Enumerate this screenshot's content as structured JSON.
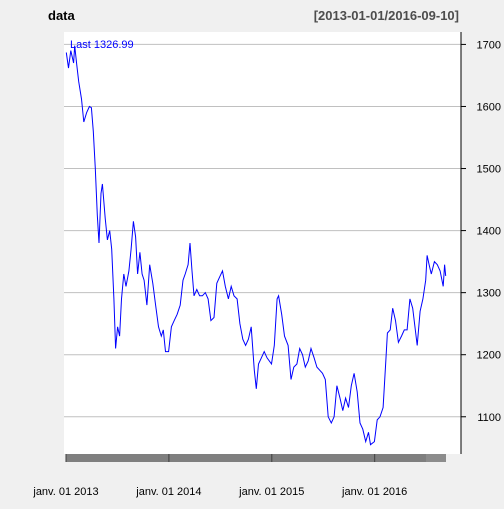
{
  "chart_data": {
    "type": "line",
    "title": "data",
    "date_range_label": "[2013-01-01/2016-09-10]",
    "last_label": "Last 1326.99",
    "xlabel": "",
    "ylabel": "",
    "xlim": [
      "2013-01-01",
      "2016-09-10"
    ],
    "ylim": [
      1040,
      1720
    ],
    "y_axis_side": "right",
    "grid": true,
    "y_ticks": [
      1100,
      1200,
      1300,
      1400,
      1500,
      1600,
      1700
    ],
    "x_tick_labels": [
      {
        "date": "2013-01-01",
        "label": "janv. 01 2013"
      },
      {
        "date": "2014-01-01",
        "label": "janv. 01 2014"
      },
      {
        "date": "2015-01-01",
        "label": "janv. 01 2015"
      },
      {
        "date": "2016-01-01",
        "label": "janv. 01 2016"
      }
    ],
    "colors": {
      "line": "#0000ff",
      "title": "#000000",
      "last_label": "#0000ff",
      "grid": "#c0c0c0",
      "bottom_bar": "#7f7f7f",
      "panel_bg": "#ffffff",
      "page_bg": "#f0f0f0"
    },
    "series": [
      {
        "points": [
          [
            "2013-01-02",
            1687
          ],
          [
            "2013-01-10",
            1662
          ],
          [
            "2013-01-18",
            1690
          ],
          [
            "2013-01-28",
            1670
          ],
          [
            "2013-02-01",
            1698
          ],
          [
            "2013-02-08",
            1668
          ],
          [
            "2013-02-15",
            1640
          ],
          [
            "2013-02-25",
            1612
          ],
          [
            "2013-03-05",
            1575
          ],
          [
            "2013-03-15",
            1590
          ],
          [
            "2013-03-25",
            1600
          ],
          [
            "2013-04-01",
            1598
          ],
          [
            "2013-04-08",
            1560
          ],
          [
            "2013-04-15",
            1500
          ],
          [
            "2013-04-22",
            1425
          ],
          [
            "2013-04-28",
            1380
          ],
          [
            "2013-05-05",
            1460
          ],
          [
            "2013-05-10",
            1475
          ],
          [
            "2013-05-20",
            1420
          ],
          [
            "2013-05-28",
            1385
          ],
          [
            "2013-06-05",
            1400
          ],
          [
            "2013-06-12",
            1370
          ],
          [
            "2013-06-20",
            1290
          ],
          [
            "2013-06-26",
            1210
          ],
          [
            "2013-07-03",
            1245
          ],
          [
            "2013-07-10",
            1230
          ],
          [
            "2013-07-17",
            1290
          ],
          [
            "2013-07-25",
            1330
          ],
          [
            "2013-08-02",
            1310
          ],
          [
            "2013-08-12",
            1335
          ],
          [
            "2013-08-20",
            1370
          ],
          [
            "2013-08-28",
            1415
          ],
          [
            "2013-09-05",
            1390
          ],
          [
            "2013-09-12",
            1330
          ],
          [
            "2013-09-20",
            1365
          ],
          [
            "2013-09-28",
            1330
          ],
          [
            "2013-10-05",
            1320
          ],
          [
            "2013-10-15",
            1280
          ],
          [
            "2013-10-25",
            1345
          ],
          [
            "2013-11-05",
            1315
          ],
          [
            "2013-11-15",
            1280
          ],
          [
            "2013-11-25",
            1245
          ],
          [
            "2013-12-05",
            1230
          ],
          [
            "2013-12-12",
            1240
          ],
          [
            "2013-12-20",
            1205
          ],
          [
            "2013-12-31",
            1205
          ],
          [
            "2014-01-10",
            1245
          ],
          [
            "2014-01-20",
            1255
          ],
          [
            "2014-01-30",
            1265
          ],
          [
            "2014-02-10",
            1280
          ],
          [
            "2014-02-20",
            1320
          ],
          [
            "2014-02-28",
            1330
          ],
          [
            "2014-03-10",
            1345
          ],
          [
            "2014-03-17",
            1380
          ],
          [
            "2014-03-24",
            1335
          ],
          [
            "2014-03-31",
            1295
          ],
          [
            "2014-04-10",
            1305
          ],
          [
            "2014-04-20",
            1295
          ],
          [
            "2014-04-30",
            1295
          ],
          [
            "2014-05-10",
            1300
          ],
          [
            "2014-05-20",
            1290
          ],
          [
            "2014-05-30",
            1255
          ],
          [
            "2014-06-10",
            1260
          ],
          [
            "2014-06-20",
            1315
          ],
          [
            "2014-06-30",
            1325
          ],
          [
            "2014-07-10",
            1335
          ],
          [
            "2014-07-20",
            1310
          ],
          [
            "2014-07-31",
            1290
          ],
          [
            "2014-08-10",
            1310
          ],
          [
            "2014-08-20",
            1295
          ],
          [
            "2014-08-31",
            1290
          ],
          [
            "2014-09-10",
            1250
          ],
          [
            "2014-09-20",
            1225
          ],
          [
            "2014-09-30",
            1215
          ],
          [
            "2014-10-10",
            1225
          ],
          [
            "2014-10-20",
            1245
          ],
          [
            "2014-10-31",
            1175
          ],
          [
            "2014-11-07",
            1145
          ],
          [
            "2014-11-15",
            1185
          ],
          [
            "2014-11-25",
            1195
          ],
          [
            "2014-12-05",
            1205
          ],
          [
            "2014-12-15",
            1195
          ],
          [
            "2014-12-31",
            1185
          ],
          [
            "2015-01-10",
            1215
          ],
          [
            "2015-01-20",
            1290
          ],
          [
            "2015-01-25",
            1295
          ],
          [
            "2015-02-05",
            1265
          ],
          [
            "2015-02-15",
            1230
          ],
          [
            "2015-02-28",
            1215
          ],
          [
            "2015-03-10",
            1160
          ],
          [
            "2015-03-20",
            1180
          ],
          [
            "2015-03-31",
            1185
          ],
          [
            "2015-04-10",
            1210
          ],
          [
            "2015-04-20",
            1200
          ],
          [
            "2015-04-30",
            1180
          ],
          [
            "2015-05-10",
            1190
          ],
          [
            "2015-05-20",
            1210
          ],
          [
            "2015-05-31",
            1195
          ],
          [
            "2015-06-10",
            1180
          ],
          [
            "2015-06-20",
            1175
          ],
          [
            "2015-06-30",
            1170
          ],
          [
            "2015-07-10",
            1160
          ],
          [
            "2015-07-20",
            1100
          ],
          [
            "2015-07-31",
            1090
          ],
          [
            "2015-08-10",
            1100
          ],
          [
            "2015-08-20",
            1150
          ],
          [
            "2015-08-31",
            1130
          ],
          [
            "2015-09-10",
            1110
          ],
          [
            "2015-09-20",
            1130
          ],
          [
            "2015-09-30",
            1115
          ],
          [
            "2015-10-10",
            1150
          ],
          [
            "2015-10-20",
            1170
          ],
          [
            "2015-10-31",
            1140
          ],
          [
            "2015-11-10",
            1090
          ],
          [
            "2015-11-20",
            1080
          ],
          [
            "2015-11-30",
            1060
          ],
          [
            "2015-12-10",
            1075
          ],
          [
            "2015-12-17",
            1055
          ],
          [
            "2015-12-31",
            1060
          ],
          [
            "2016-01-10",
            1095
          ],
          [
            "2016-01-20",
            1100
          ],
          [
            "2016-01-31",
            1115
          ],
          [
            "2016-02-10",
            1195
          ],
          [
            "2016-02-15",
            1235
          ],
          [
            "2016-02-25",
            1240
          ],
          [
            "2016-03-05",
            1275
          ],
          [
            "2016-03-15",
            1255
          ],
          [
            "2016-03-25",
            1220
          ],
          [
            "2016-04-05",
            1230
          ],
          [
            "2016-04-15",
            1240
          ],
          [
            "2016-04-25",
            1240
          ],
          [
            "2016-05-05",
            1290
          ],
          [
            "2016-05-15",
            1275
          ],
          [
            "2016-05-31",
            1215
          ],
          [
            "2016-06-10",
            1270
          ],
          [
            "2016-06-20",
            1290
          ],
          [
            "2016-06-30",
            1320
          ],
          [
            "2016-07-05",
            1360
          ],
          [
            "2016-07-12",
            1345
          ],
          [
            "2016-07-20",
            1330
          ],
          [
            "2016-07-31",
            1350
          ],
          [
            "2016-08-10",
            1345
          ],
          [
            "2016-08-20",
            1335
          ],
          [
            "2016-08-31",
            1310
          ],
          [
            "2016-09-05",
            1345
          ],
          [
            "2016-09-09",
            1327
          ]
        ]
      }
    ]
  }
}
